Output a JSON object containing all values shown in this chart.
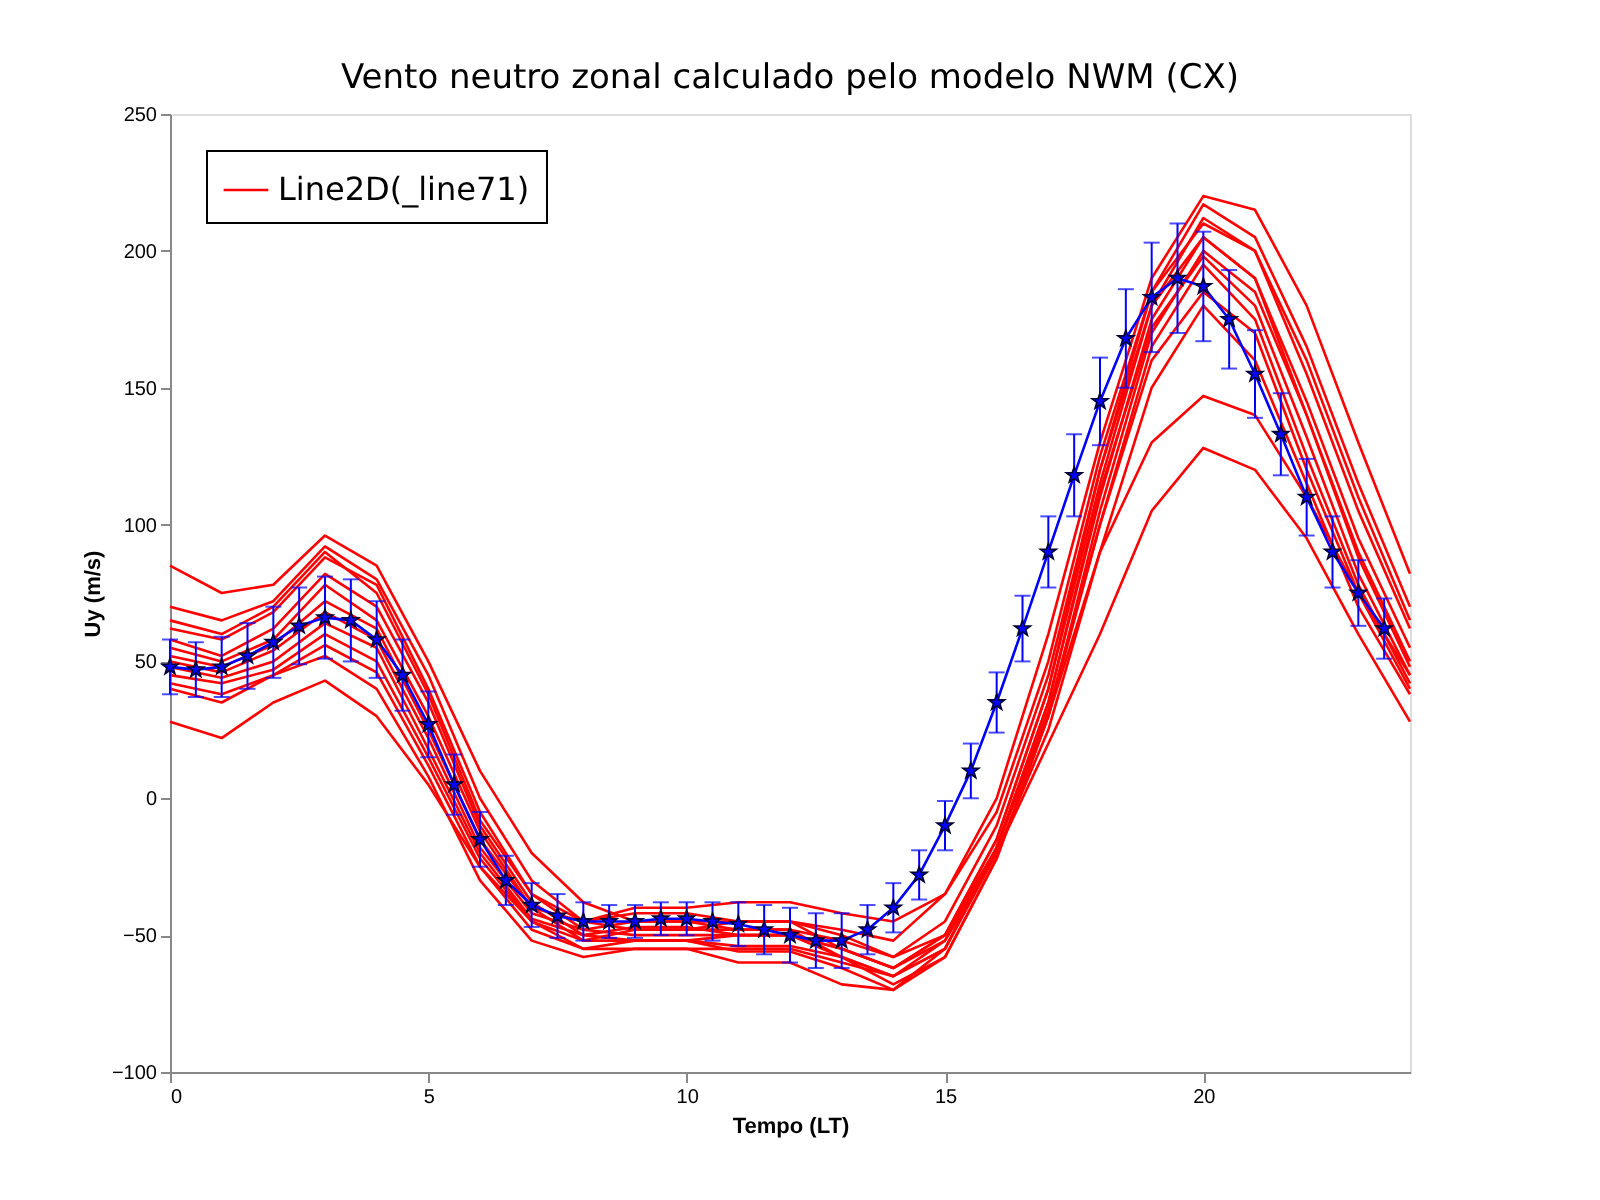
{
  "chart_data": {
    "type": "line",
    "title": "Vento neutro zonal calculado pelo modelo NWM (CX)",
    "xlabel": "Tempo (LT)",
    "ylabel": "Uy (m/s)",
    "x": [
      0,
      1,
      2,
      3,
      4,
      5,
      6,
      7,
      8,
      9,
      10,
      11,
      12,
      13,
      14,
      15,
      16,
      17,
      18,
      19,
      20,
      21,
      22,
      23,
      24
    ],
    "xlim": [
      0,
      24
    ],
    "xticks": [
      0,
      5,
      10,
      15,
      20
    ],
    "ylim": [
      -100,
      250
    ],
    "yticks": [
      -100,
      -50,
      0,
      50,
      100,
      150,
      200,
      250
    ],
    "grid": false,
    "legend": "top left",
    "line_style": "solid",
    "series": [
      {
        "name": "Line2D(_line71)",
        "color": "#ff0000",
        "values": [
          85,
          75,
          78,
          96,
          85,
          50,
          10,
          -20,
          -38,
          -45,
          -45,
          -45,
          -45,
          -48,
          -52,
          -35,
          0,
          60,
          130,
          190,
          220,
          215,
          180,
          130,
          82
        ]
      },
      {
        "color": "#ff0000",
        "values": [
          70,
          65,
          72,
          92,
          80,
          45,
          0,
          -30,
          -45,
          -48,
          -48,
          -48,
          -48,
          -52,
          -58,
          -45,
          -10,
          45,
          120,
          185,
          217,
          205,
          165,
          115,
          70
        ]
      },
      {
        "color": "#ff0000",
        "values": [
          62,
          58,
          68,
          88,
          78,
          40,
          -5,
          -35,
          -48,
          -50,
          -50,
          -50,
          -50,
          -55,
          -62,
          -50,
          -15,
          40,
          115,
          180,
          212,
          200,
          155,
          105,
          62
        ]
      },
      {
        "color": "#ff0000",
        "values": [
          58,
          52,
          62,
          82,
          70,
          35,
          -10,
          -38,
          -50,
          -52,
          -52,
          -54,
          -54,
          -58,
          -65,
          -55,
          -18,
          35,
          110,
          175,
          205,
          190,
          145,
          95,
          55
        ]
      },
      {
        "color": "#ff0000",
        "values": [
          55,
          50,
          58,
          78,
          65,
          30,
          -12,
          -40,
          -52,
          -52,
          -52,
          -56,
          -56,
          -62,
          -70,
          -58,
          -22,
          30,
          105,
          170,
          200,
          185,
          140,
          90,
          50
        ]
      },
      {
        "color": "#ff0000",
        "values": [
          52,
          48,
          56,
          72,
          62,
          25,
          -15,
          -40,
          -45,
          -42,
          -42,
          -45,
          -45,
          -55,
          -62,
          -50,
          -15,
          40,
          120,
          180,
          205,
          190,
          140,
          88,
          48
        ]
      },
      {
        "color": "#ff0000",
        "values": [
          50,
          46,
          54,
          68,
          58,
          22,
          -18,
          -42,
          -48,
          -45,
          -45,
          -48,
          -48,
          -58,
          -65,
          -52,
          -18,
          35,
          112,
          172,
          198,
          180,
          132,
          82,
          45
        ]
      },
      {
        "color": "#ff0000",
        "values": [
          48,
          44,
          50,
          64,
          55,
          18,
          -20,
          -44,
          -50,
          -47,
          -47,
          -50,
          -50,
          -58,
          -68,
          -58,
          -22,
          30,
          100,
          165,
          195,
          175,
          125,
          78,
          42
        ]
      },
      {
        "color": "#ff0000",
        "values": [
          45,
          42,
          47,
          60,
          50,
          15,
          -22,
          -45,
          -52,
          -48,
          -48,
          -45,
          -45,
          -50,
          -58,
          -50,
          -18,
          32,
          100,
          160,
          185,
          170,
          120,
          75,
          40
        ]
      },
      {
        "color": "#ff0000",
        "values": [
          42,
          38,
          45,
          56,
          46,
          12,
          -25,
          -48,
          -55,
          -52,
          -52,
          -50,
          -50,
          -55,
          -62,
          -52,
          -20,
          25,
          90,
          150,
          180,
          160,
          115,
          70,
          38
        ]
      },
      {
        "color": "#ff0000",
        "values": [
          40,
          35,
          45,
          52,
          40,
          8,
          -30,
          -52,
          -58,
          -55,
          -55,
          -55,
          -55,
          -60,
          -65,
          -55,
          -18,
          30,
          90,
          130,
          147,
          140,
          110,
          75,
          45
        ]
      },
      {
        "color": "#ff0000",
        "values": [
          28,
          22,
          35,
          43,
          30,
          5,
          -25,
          -45,
          -55,
          -55,
          -55,
          -60,
          -60,
          -68,
          -70,
          -55,
          -20,
          20,
          60,
          105,
          128,
          120,
          95,
          60,
          28
        ]
      },
      {
        "color": "#ff0000",
        "values": [
          65,
          60,
          70,
          90,
          75,
          38,
          -8,
          -35,
          -45,
          -40,
          -40,
          -38,
          -38,
          -42,
          -45,
          -35,
          -5,
          50,
          125,
          185,
          210,
          200,
          160,
          110,
          65
        ]
      },
      {
        "color": "#0000ff",
        "marker": "star",
        "x": [
          0,
          0.5,
          1,
          1.5,
          2,
          2.5,
          3,
          3.5,
          4,
          4.5,
          5,
          5.5,
          6,
          6.5,
          7,
          7.5,
          8,
          8.5,
          9,
          9.5,
          10,
          10.5,
          11,
          11.5,
          12,
          12.5,
          13,
          13.5,
          14,
          14.5,
          15,
          15.5,
          16,
          16.5,
          17,
          17.5,
          18,
          18.5,
          19,
          19.5,
          20,
          20.5,
          21,
          21.5,
          22,
          22.5,
          23,
          23.5
        ],
        "values": [
          48,
          47,
          48,
          52,
          57,
          63,
          66,
          65,
          58,
          45,
          27,
          5,
          -15,
          -30,
          -39,
          -43,
          -45,
          -45,
          -45,
          -44,
          -44,
          -45,
          -46,
          -48,
          -50,
          -52,
          -52,
          -48,
          -40,
          -28,
          -10,
          10,
          35,
          62,
          90,
          118,
          145,
          168,
          183,
          190,
          187,
          175,
          155,
          133,
          110,
          90,
          75,
          62
        ],
        "errors": [
          10,
          10,
          11,
          12,
          13,
          14,
          15,
          15,
          14,
          13,
          12,
          11,
          10,
          9,
          8,
          8,
          7,
          6,
          6,
          6,
          6,
          7,
          8,
          9,
          10,
          10,
          10,
          9,
          9,
          9,
          9,
          10,
          11,
          12,
          13,
          15,
          16,
          18,
          20,
          20,
          20,
          18,
          16,
          15,
          14,
          13,
          12,
          11
        ]
      }
    ]
  }
}
